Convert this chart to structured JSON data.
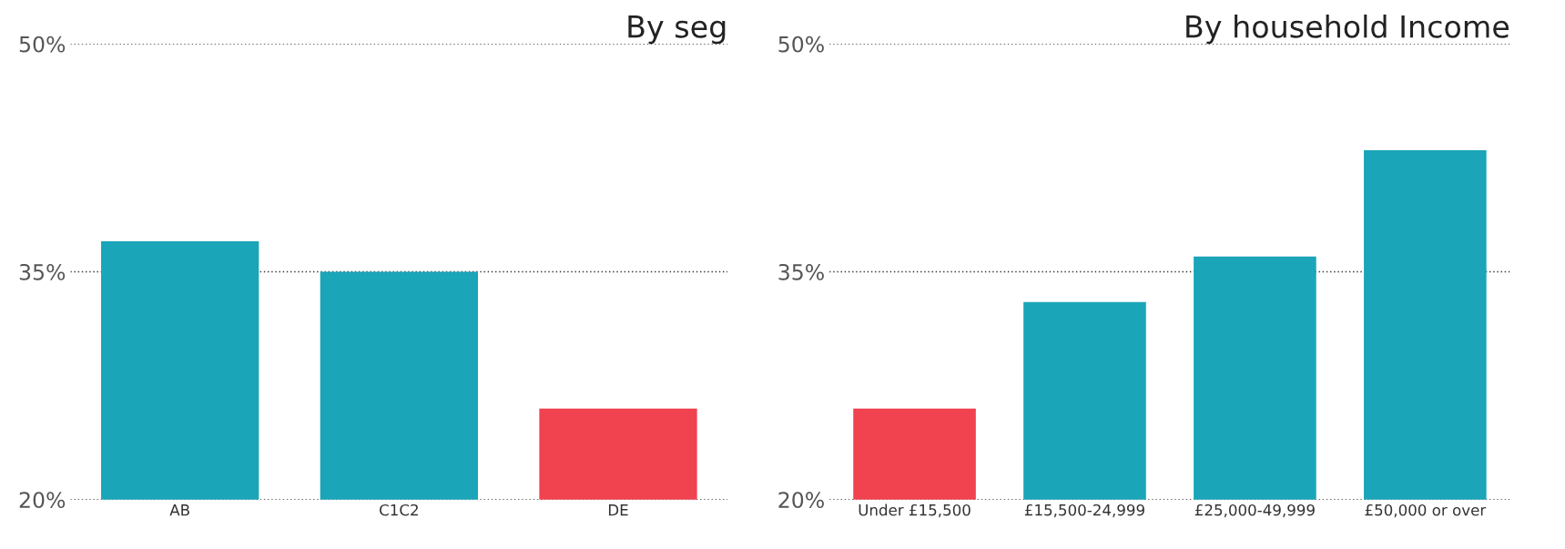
{
  "chart_data": [
    {
      "type": "bar",
      "title": "By seg",
      "categories": [
        "AB",
        "C1C2",
        "DE"
      ],
      "values": [
        37,
        35,
        26
      ],
      "colors": [
        "#1aa5b8",
        "#1aa5b8",
        "#f0424f"
      ],
      "ylim": [
        20,
        50
      ],
      "yticks": [
        {
          "value": 20,
          "label": "20%"
        },
        {
          "value": 35,
          "label": "35%"
        },
        {
          "value": 50,
          "label": "50%"
        }
      ],
      "grid": "y",
      "legend": false
    },
    {
      "type": "bar",
      "title": "By household Income",
      "categories": [
        "Under £15,500",
        "£15,500-24,999",
        "£25,000-49,999",
        "£50,000 or over"
      ],
      "values": [
        26,
        33,
        36,
        43
      ],
      "colors": [
        "#f0424f",
        "#1aa5b8",
        "#1aa5b8",
        "#1aa5b8"
      ],
      "ylim": [
        20,
        50
      ],
      "yticks": [
        {
          "value": 20,
          "label": "20%"
        },
        {
          "value": 35,
          "label": "35%"
        },
        {
          "value": 50,
          "label": "50%"
        }
      ],
      "grid": "y",
      "legend": false
    }
  ]
}
